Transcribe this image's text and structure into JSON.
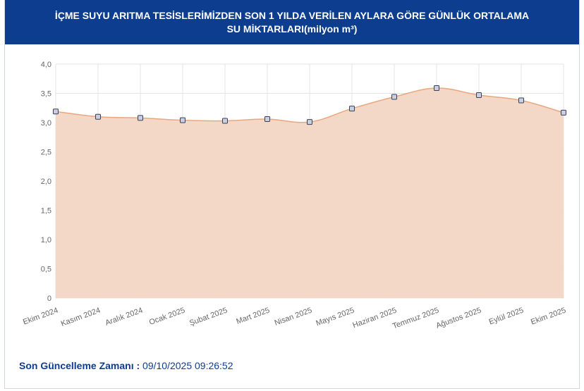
{
  "header": {
    "title": "İÇME SUYU ARITMA TESİSLERİMİZDEN SON 1 YILDA VERİLEN AYLARA GÖRE GÜNLÜK ORTALAMA SU MİKTARLARI(milyon m³)"
  },
  "footer": {
    "label": "Son Güncelleme Zamanı :",
    "value": "09/10/2025 09:26:52"
  },
  "colors": {
    "header_bg": "#0d3d8f",
    "area_fill": "#f3d6c4",
    "line": "#e8a77f",
    "marker_fill": "#c9cfe0",
    "marker_stroke": "#3a3f55"
  },
  "chart_data": {
    "type": "area",
    "title": "İÇME SUYU ARITMA TESİSLERİMİZDEN SON 1 YILDA VERİLEN AYLARA GÖRE GÜNLÜK ORTALAMA SU MİKTARLARI(milyon m³)",
    "categories": [
      "Ekim 2024",
      "Kasım 2024",
      "Aralık 2024",
      "Ocak 2025",
      "Şubat 2025",
      "Mart 2025",
      "Nisan 2025",
      "Mayıs 2025",
      "Haziran 2025",
      "Temmuz 2025",
      "Ağustos 2025",
      "Eylül 2025",
      "Ekim 2025"
    ],
    "series": [
      {
        "values": [
          3.19,
          3.1,
          3.08,
          3.04,
          3.03,
          3.06,
          3.01,
          3.24,
          3.44,
          3.59,
          3.47,
          3.38,
          3.17
        ]
      }
    ],
    "ylim": [
      0,
      4
    ],
    "yticks": [
      "0",
      "0,5",
      "1,0",
      "1,5",
      "2,0",
      "2,5",
      "3,0",
      "3,5",
      "4,0"
    ],
    "xlabel": "",
    "ylabel": "",
    "grid": true,
    "legend": "none"
  }
}
